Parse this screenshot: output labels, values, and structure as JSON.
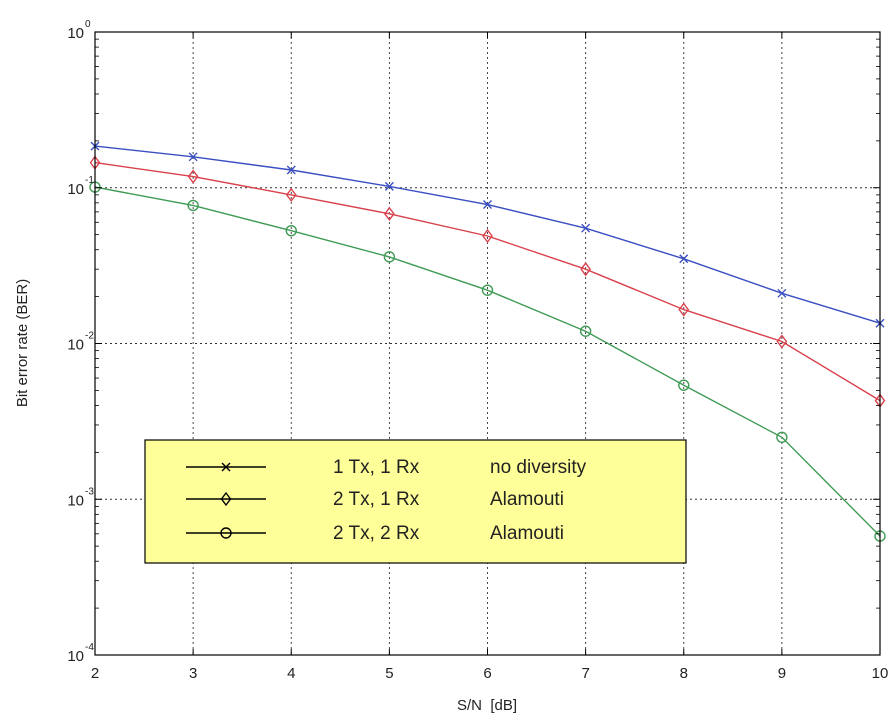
{
  "chart_data": {
    "type": "line",
    "title": "",
    "xlabel": "S/N  [dB]",
    "ylabel": "Bit error rate (BER)",
    "xlim": [
      2,
      10
    ],
    "ylim": [
      0.0001,
      1
    ],
    "y_scale": "log",
    "grid": true,
    "x_ticks": [
      "2",
      "3",
      "4",
      "5",
      "6",
      "7",
      "8",
      "9",
      "10"
    ],
    "y_ticks": [
      {
        "value": 1,
        "base": "10",
        "exp": "0"
      },
      {
        "value": 0.1,
        "base": "10",
        "exp": "-1"
      },
      {
        "value": 0.01,
        "base": "10",
        "exp": "-2"
      },
      {
        "value": 0.001,
        "base": "10",
        "exp": "-3"
      },
      {
        "value": 0.0001,
        "base": "10",
        "exp": "-4"
      }
    ],
    "x": [
      2,
      3,
      4,
      5,
      6,
      7,
      8,
      9,
      10
    ],
    "legend_position": "lower-left",
    "legend_background": "#ffff99",
    "series": [
      {
        "name": "1 Tx, 1 Rx",
        "note": "no diversity",
        "marker": "x",
        "color": "#3b4fc2",
        "values": [
          0.185,
          0.158,
          0.13,
          0.102,
          0.078,
          0.055,
          0.035,
          0.021,
          0.0135
        ]
      },
      {
        "name": "2 Tx, 1 Rx",
        "note": "Alamouti",
        "marker": "diamond",
        "color": "#d9414c",
        "values": [
          0.145,
          0.118,
          0.09,
          0.068,
          0.049,
          0.03,
          0.0165,
          0.0103,
          0.0043
        ]
      },
      {
        "name": "2 Tx, 2 Rx",
        "note": "Alamouti",
        "marker": "circle",
        "color": "#3f9b55",
        "values": [
          0.101,
          0.077,
          0.053,
          0.036,
          0.022,
          0.012,
          0.0054,
          0.0025,
          0.00058
        ]
      }
    ]
  }
}
